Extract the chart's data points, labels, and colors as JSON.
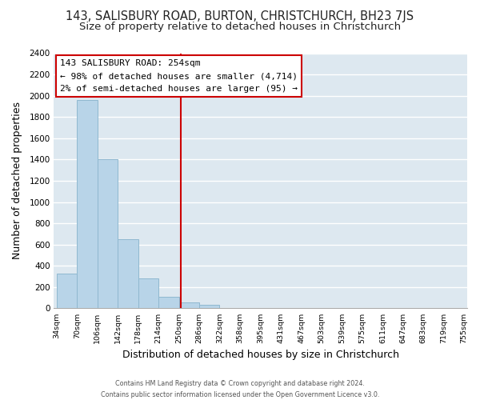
{
  "title": "143, SALISBURY ROAD, BURTON, CHRISTCHURCH, BH23 7JS",
  "subtitle": "Size of property relative to detached houses in Christchurch",
  "xlabel": "Distribution of detached houses by size in Christchurch",
  "ylabel": "Number of detached properties",
  "bin_edges": [
    34,
    70,
    106,
    142,
    178,
    214,
    250,
    286,
    322,
    358,
    395,
    431,
    467,
    503,
    539,
    575,
    611,
    647,
    683,
    719,
    755
  ],
  "bin_labels": [
    "34sqm",
    "70sqm",
    "106sqm",
    "142sqm",
    "178sqm",
    "214sqm",
    "250sqm",
    "286sqm",
    "322sqm",
    "358sqm",
    "395sqm",
    "431sqm",
    "467sqm",
    "503sqm",
    "539sqm",
    "575sqm",
    "611sqm",
    "647sqm",
    "683sqm",
    "719sqm",
    "755sqm"
  ],
  "counts": [
    325,
    1960,
    1400,
    650,
    280,
    110,
    55,
    35,
    0,
    0,
    0,
    0,
    0,
    0,
    0,
    0,
    0,
    0,
    0,
    0
  ],
  "bar_color": "#b8d4e8",
  "bar_edge_color": "#90b8d0",
  "vline_x": 254,
  "vline_color": "#cc0000",
  "annotation_title": "143 SALISBURY ROAD: 254sqm",
  "annotation_line1": "← 98% of detached houses are smaller (4,714)",
  "annotation_line2": "2% of semi-detached houses are larger (95) →",
  "annotation_box_edge": "#cc0000",
  "annotation_box_face": "#ffffff",
  "ylim": [
    0,
    2400
  ],
  "yticks": [
    0,
    200,
    400,
    600,
    800,
    1000,
    1200,
    1400,
    1600,
    1800,
    2000,
    2200,
    2400
  ],
  "footer1": "Contains HM Land Registry data © Crown copyright and database right 2024.",
  "footer2": "Contains public sector information licensed under the Open Government Licence v3.0.",
  "fig_bg_color": "#ffffff",
  "plot_bg_color": "#dde8f0",
  "title_fontsize": 10.5,
  "subtitle_fontsize": 9.5,
  "grid_color": "#ffffff"
}
